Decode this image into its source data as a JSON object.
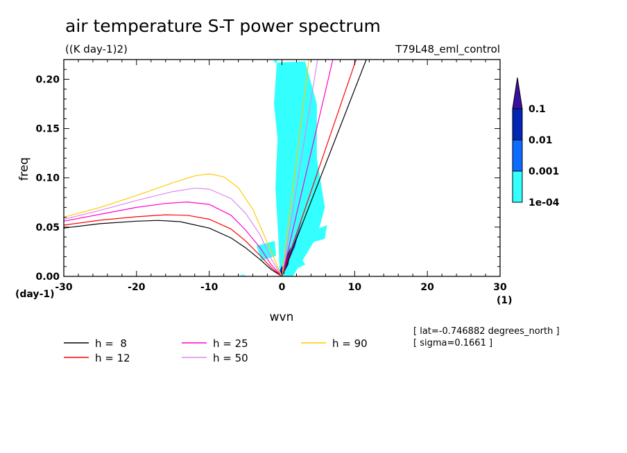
{
  "chart_data": {
    "type": "contour",
    "title": "air temperature S-T power spectrum",
    "units": "((K day-1)2)",
    "experiment": "T79L48_eml_control",
    "xlabel": "wvn",
    "ylabel": "freq",
    "x_unit": "(1)",
    "y_unit": "(day-1)",
    "xlim": [
      -30,
      30
    ],
    "ylim": [
      0,
      0.22
    ],
    "x_ticks": [
      -30,
      -20,
      -10,
      0,
      10,
      20,
      30
    ],
    "x_tick_labels": [
      "-30",
      "-20",
      "-10",
      "0",
      "10",
      "20",
      "30"
    ],
    "y_ticks": [
      0,
      0.05,
      0.1,
      0.15,
      0.2
    ],
    "y_tick_labels": [
      "0.00",
      "0.05",
      "0.10",
      "0.15",
      "0.20"
    ],
    "colorbar": {
      "levels": [
        "1e-04",
        "0.001",
        "0.01",
        "0.1"
      ],
      "colors": [
        "#33ffff",
        "#0d6bff",
        "#0026b3",
        "#3b0fa0"
      ]
    },
    "dispersion_curves": [
      {
        "name": "h = 8",
        "color": "#000000",
        "kelvin_end": [
          11.6,
          0.22
        ],
        "rossby": [
          [
            -30,
            0.049
          ],
          [
            -25,
            0.0535
          ],
          [
            -20,
            0.056
          ],
          [
            -17,
            0.0568
          ],
          [
            -14,
            0.0555
          ],
          [
            -10,
            0.049
          ],
          [
            -7,
            0.039
          ],
          [
            -5,
            0.029
          ],
          [
            -3,
            0.017
          ],
          [
            -1.5,
            0.007
          ],
          [
            0,
            0
          ]
        ]
      },
      {
        "name": "h = 12",
        "color": "#ff0000",
        "kelvin_end": [
          10.2,
          0.22
        ],
        "rossby": [
          [
            -30,
            0.052
          ],
          [
            -25,
            0.057
          ],
          [
            -20,
            0.0605
          ],
          [
            -16,
            0.0625
          ],
          [
            -13,
            0.062
          ],
          [
            -10,
            0.058
          ],
          [
            -7,
            0.048
          ],
          [
            -5,
            0.036
          ],
          [
            -3,
            0.021
          ],
          [
            -1.5,
            0.009
          ],
          [
            0,
            0
          ]
        ]
      },
      {
        "name": "h = 25",
        "color": "#ff00cc",
        "kelvin_end": [
          7.0,
          0.22
        ],
        "rossby": [
          [
            -30,
            0.056
          ],
          [
            -25,
            0.063
          ],
          [
            -20,
            0.07
          ],
          [
            -16,
            0.074
          ],
          [
            -13,
            0.0755
          ],
          [
            -10,
            0.073
          ],
          [
            -7,
            0.062
          ],
          [
            -5,
            0.047
          ],
          [
            -3,
            0.029
          ],
          [
            -1.5,
            0.012
          ],
          [
            0,
            0
          ]
        ]
      },
      {
        "name": "h = 50",
        "color": "#dd88ee",
        "kelvin_end": [
          4.9,
          0.22
        ],
        "rossby": [
          [
            -30,
            0.058
          ],
          [
            -25,
            0.067
          ],
          [
            -20,
            0.077
          ],
          [
            -15,
            0.086
          ],
          [
            -12,
            0.0895
          ],
          [
            -10,
            0.0885
          ],
          [
            -7,
            0.079
          ],
          [
            -5,
            0.064
          ],
          [
            -3,
            0.042
          ],
          [
            -1.5,
            0.018
          ],
          [
            0,
            0
          ]
        ]
      },
      {
        "name": "h = 90",
        "color": "#ffcc00",
        "kelvin_end": [
          3.7,
          0.22
        ],
        "rossby": [
          [
            -30,
            0.06
          ],
          [
            -25,
            0.07
          ],
          [
            -20,
            0.082
          ],
          [
            -15,
            0.095
          ],
          [
            -12,
            0.102
          ],
          [
            -10,
            0.104
          ],
          [
            -8,
            0.101
          ],
          [
            -6,
            0.09
          ],
          [
            -4,
            0.068
          ],
          [
            -2,
            0.034
          ],
          [
            0,
            0
          ]
        ]
      }
    ],
    "shaded_regions": [
      {
        "level": "1e-04",
        "points": [
          [
            -0.3,
            0.0
          ],
          [
            -0.5,
            0.04
          ],
          [
            -0.9,
            0.09
          ],
          [
            -0.6,
            0.14
          ],
          [
            -1.1,
            0.175
          ],
          [
            -0.7,
            0.217
          ],
          [
            3.2,
            0.218
          ],
          [
            4.8,
            0.175
          ],
          [
            4.8,
            0.12
          ],
          [
            5.9,
            0.07
          ],
          [
            4.8,
            0.04
          ],
          [
            1.5,
            0.0
          ]
        ]
      },
      {
        "level": "1e-04",
        "points": [
          [
            -3.5,
            0.031
          ],
          [
            -1.0,
            0.036
          ],
          [
            -0.8,
            0.021
          ],
          [
            -2.8,
            0.016
          ]
        ]
      },
      {
        "level": "1e-04",
        "points": [
          [
            0.5,
            0.01
          ],
          [
            2.7,
            0.018
          ],
          [
            3.2,
            0.012
          ],
          [
            1.0,
            0.004
          ]
        ]
      },
      {
        "level": "1e-04",
        "points": [
          [
            4.2,
            0.046
          ],
          [
            6.2,
            0.052
          ],
          [
            5.9,
            0.038
          ],
          [
            4.4,
            0.035
          ]
        ]
      },
      {
        "level": "1e-04",
        "points": [
          [
            -6.0,
            0.0008
          ],
          [
            -5.3,
            0.0018
          ],
          [
            -4.9,
            0.0006
          ]
        ]
      },
      {
        "level": "1e-04",
        "points": [
          [
            -1.2,
            0.219
          ],
          [
            -0.6,
            0.22
          ],
          [
            -0.8,
            0.216
          ]
        ]
      },
      {
        "level": "0.001",
        "points": [
          [
            0,
            0.0
          ],
          [
            1.8,
            0.03
          ],
          [
            2.8,
            0.06
          ],
          [
            3.2,
            0.07
          ],
          [
            2.2,
            0.045
          ],
          [
            0.5,
            0.012
          ]
        ]
      },
      {
        "level": "0.01",
        "points": [
          [
            0,
            0.0
          ],
          [
            0.6,
            0.02
          ],
          [
            1.2,
            0.03
          ],
          [
            0.9,
            0.012
          ]
        ]
      },
      {
        "level": "0.01",
        "points": [
          [
            -0.5,
            0.002
          ],
          [
            0,
            0.011
          ],
          [
            0.4,
            0.003
          ]
        ]
      }
    ],
    "legend": [
      "h =  8",
      "h = 12",
      "h = 25",
      "h = 50",
      "h = 90"
    ]
  },
  "annotations": {
    "lat": "[ lat=-0.746882 degrees_north ]",
    "sigma": "[ sigma=0.1661 ]"
  }
}
